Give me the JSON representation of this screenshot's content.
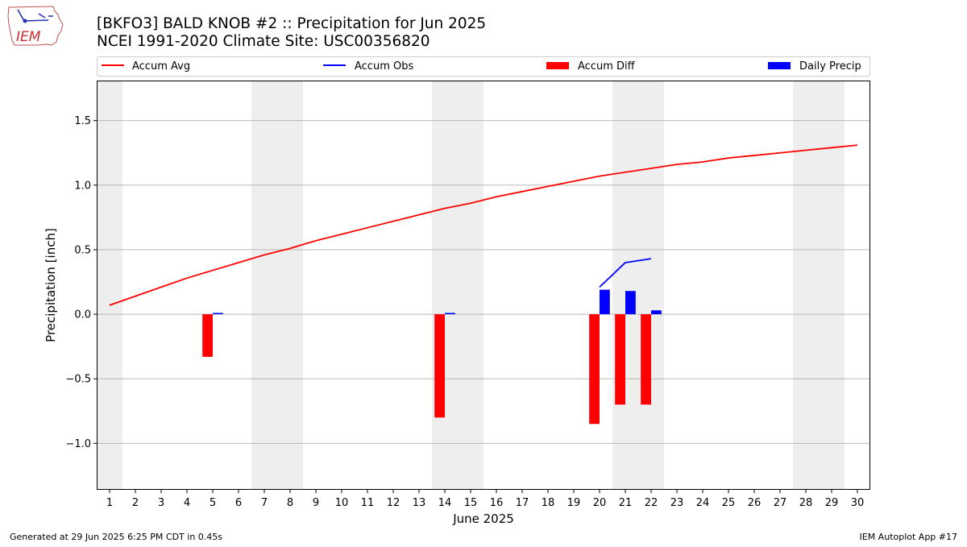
{
  "header": {
    "title_line1": "[BKFO3] BALD KNOB #2 :: Precipitation for Jun 2025",
    "title_line2": "NCEI 1991-2020 Climate Site: USC00356820",
    "logo_text": "IEM"
  },
  "footer": {
    "left": "Generated at 29 Jun 2025 6:25 PM CDT in 0.45s",
    "right": "IEM Autoplot App #17"
  },
  "colors": {
    "avg": "#ff0000",
    "obs": "#0000ff",
    "diff": "#ff0000",
    "daily": "#0000ff",
    "weekend": "#eeeeee",
    "grid": "#b0b0b0"
  },
  "chart_data": {
    "type": "bar",
    "xlabel": "June 2025",
    "ylabel": "Precipitation [inch]",
    "xlim": [
      0.5,
      30.5
    ],
    "ylim": [
      -1.36,
      1.81
    ],
    "yticks": [
      -1.0,
      -0.5,
      0.0,
      0.5,
      1.0,
      1.5
    ],
    "ytick_labels": [
      "−1.0",
      "−0.5",
      "0.0",
      "0.5",
      "1.0",
      "1.5"
    ],
    "grid": "horizontal",
    "legend_placement": "top",
    "legend": [
      "Accum Avg",
      "Accum Obs",
      "Accum Diff",
      "Daily Precip"
    ],
    "x": [
      1,
      2,
      3,
      4,
      5,
      6,
      7,
      8,
      9,
      10,
      11,
      12,
      13,
      14,
      15,
      16,
      17,
      18,
      19,
      20,
      21,
      22,
      23,
      24,
      25,
      26,
      27,
      28,
      29,
      30
    ],
    "shaded_days": [
      [
        0.5,
        1.5
      ],
      [
        6.5,
        8.5
      ],
      [
        13.5,
        15.5
      ],
      [
        20.5,
        22.5
      ],
      [
        27.5,
        29.5
      ]
    ],
    "series": [
      {
        "name": "Accum Avg",
        "kind": "line",
        "x": [
          1,
          2,
          3,
          4,
          5,
          6,
          7,
          8,
          9,
          10,
          11,
          12,
          13,
          14,
          15,
          16,
          17,
          18,
          19,
          20,
          21,
          22,
          23,
          24,
          25,
          26,
          27,
          28,
          29,
          30
        ],
        "values": [
          0.07,
          0.14,
          0.21,
          0.28,
          0.34,
          0.4,
          0.46,
          0.51,
          0.57,
          0.62,
          0.67,
          0.72,
          0.77,
          0.82,
          0.86,
          0.91,
          0.95,
          0.99,
          1.03,
          1.07,
          1.1,
          1.13,
          1.16,
          1.18,
          1.21,
          1.23,
          1.25,
          1.27,
          1.29,
          1.31
        ]
      },
      {
        "name": "Accum Obs",
        "kind": "line",
        "x": [
          20,
          21,
          22
        ],
        "values": [
          0.21,
          0.4,
          0.43
        ]
      },
      {
        "name": "Accum Diff",
        "kind": "bar",
        "x": [
          5,
          14,
          20,
          21,
          22
        ],
        "values": [
          -0.33,
          -0.8,
          -0.85,
          -0.7,
          -0.7
        ]
      },
      {
        "name": "Daily Precip",
        "kind": "bar",
        "x": [
          5,
          14,
          20,
          21,
          22
        ],
        "values": [
          0.01,
          0.01,
          0.19,
          0.18,
          0.03
        ]
      }
    ]
  }
}
